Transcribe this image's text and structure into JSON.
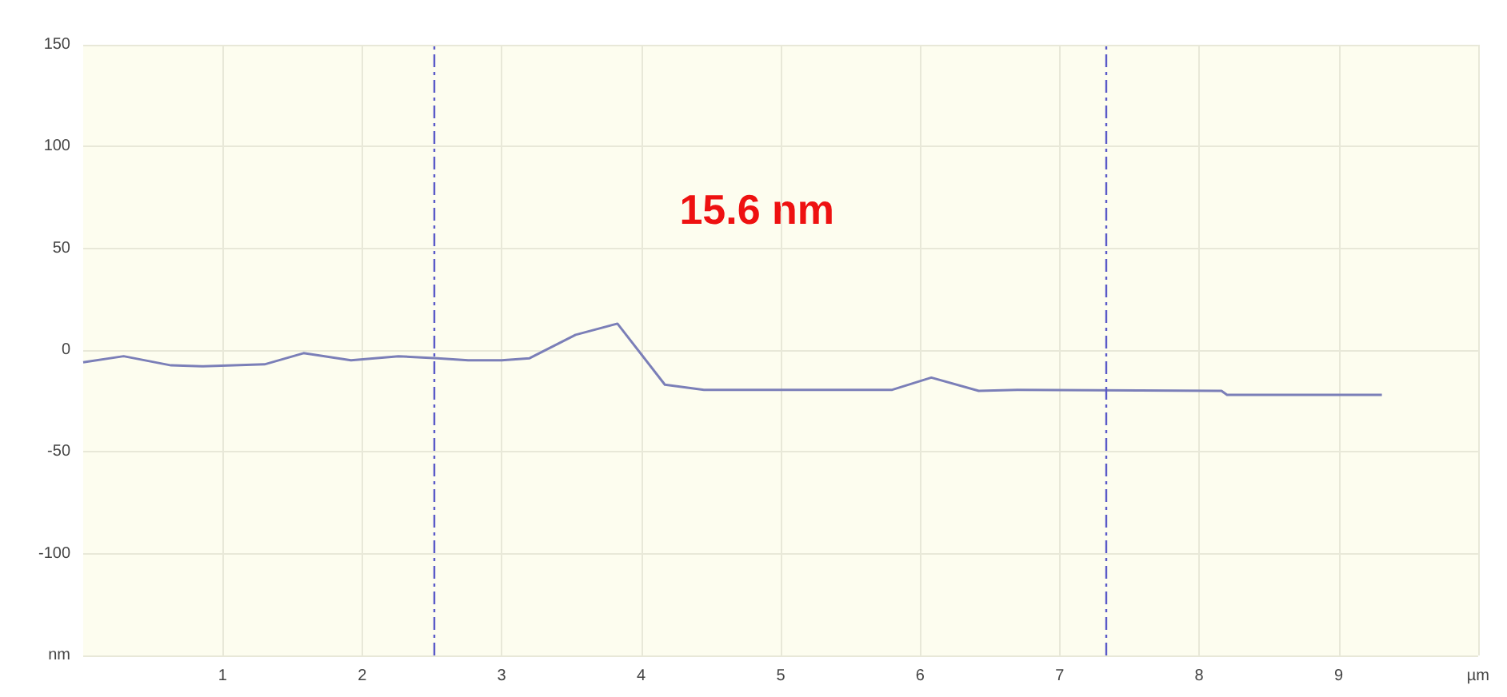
{
  "chart_data": {
    "type": "line",
    "annotations": [
      "15.6 nm"
    ],
    "x": [
      0,
      0.29,
      0.63,
      0.85,
      1.3,
      1.58,
      1.92,
      2.26,
      2.54,
      2.76,
      3.0,
      3.2,
      3.53,
      3.83,
      4.17,
      4.45,
      5.8,
      6.08,
      6.42,
      6.7,
      8.16,
      8.2,
      9.31
    ],
    "series": [
      {
        "color": "#7b7fb8",
        "values": [
          -6,
          -3,
          -7.5,
          -8,
          -7,
          -1.5,
          -5,
          -3,
          -4,
          -5,
          -5,
          -4,
          7.5,
          13,
          -17,
          -19.5,
          -19.5,
          -13.5,
          -20,
          -19.5,
          -20,
          -22,
          -22
        ]
      }
    ],
    "xlim": [
      0,
      10
    ],
    "xticks": [
      1,
      2,
      3,
      4,
      5,
      6,
      7,
      8,
      9,
      {
        "value": 10,
        "label": "µm"
      }
    ],
    "ylim": [
      -150,
      150
    ],
    "yticks": [
      {
        "value": -150,
        "label": "nm"
      },
      -100,
      -50,
      0,
      50,
      100,
      150
    ],
    "ref_lines": [
      {
        "axis": "x",
        "value": 2.52,
        "color": "#5a5ac8",
        "line_style": "dashdot"
      },
      {
        "axis": "x",
        "value": 7.33,
        "color": "#5a5ac8",
        "line_style": "dashdot"
      }
    ],
    "grid": true,
    "marker": "none",
    "line_style": "solid"
  }
}
